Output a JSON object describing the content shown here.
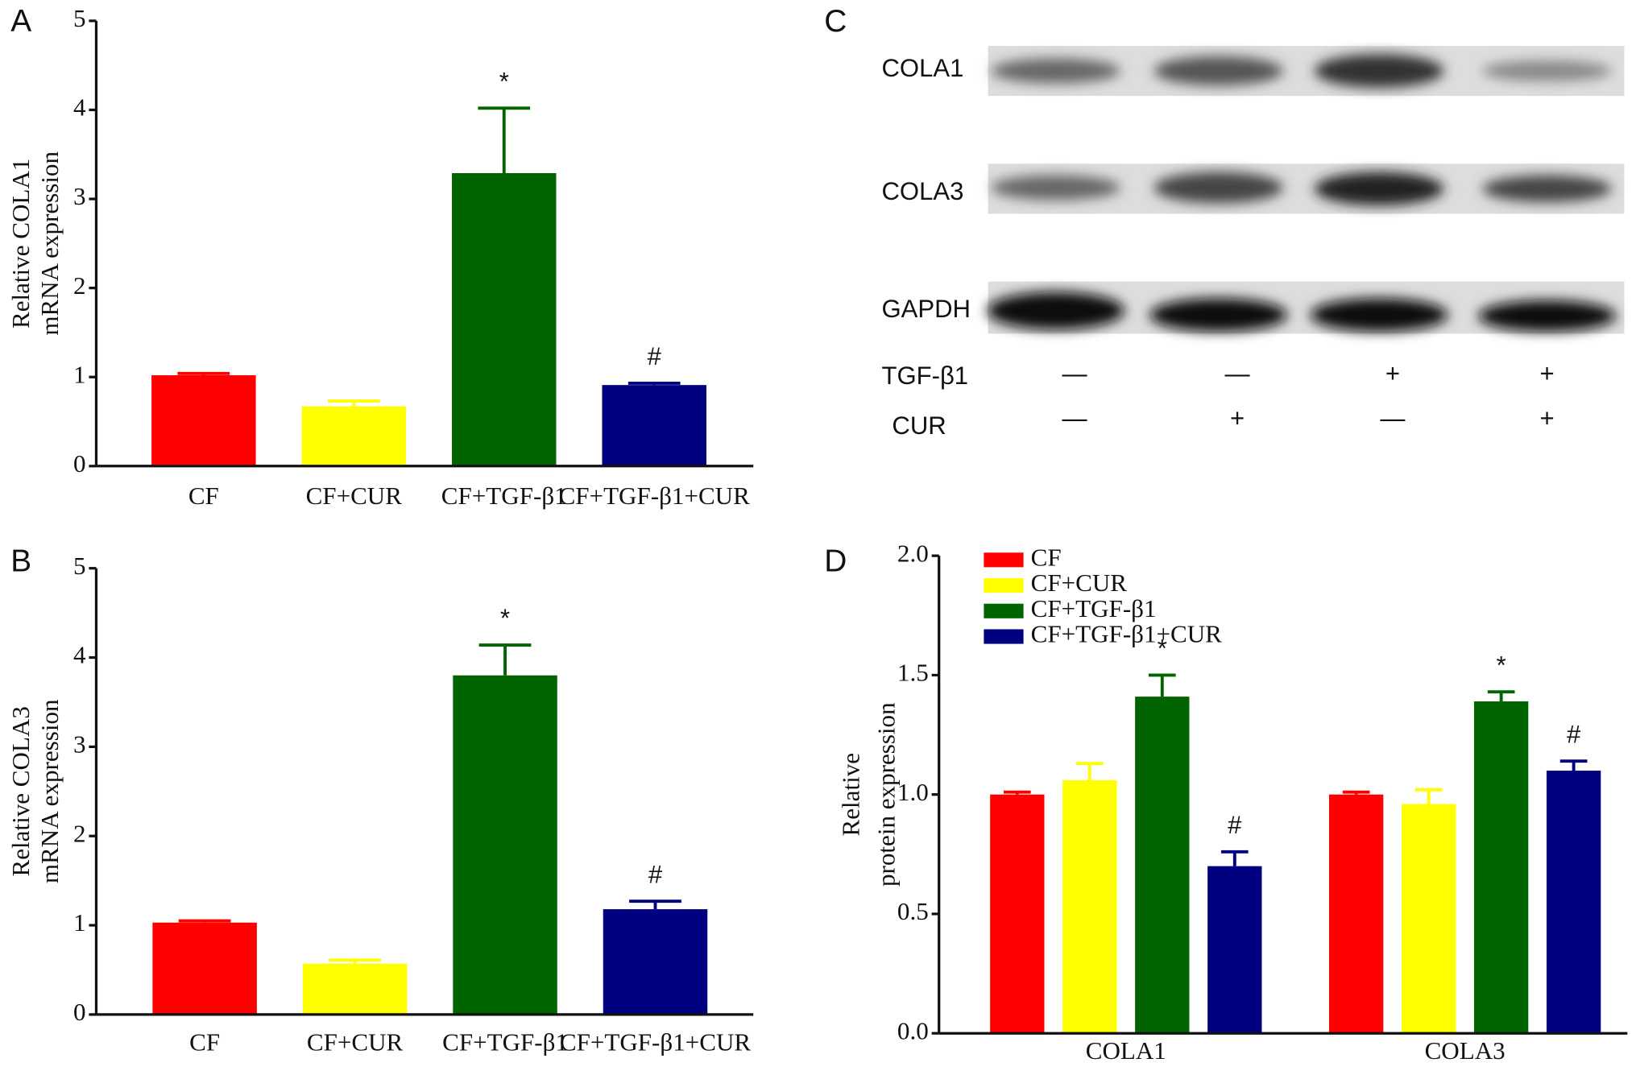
{
  "chart_data": [
    {
      "type": "bar",
      "panel": "A",
      "ylabel": [
        "Relative COLA1",
        "mRNA expression"
      ],
      "categories": [
        "CF",
        "CF+CUR",
        "CF+TGF-β1",
        "CF+TGF-β1+CUR"
      ],
      "values": [
        1.02,
        0.67,
        3.29,
        0.91
      ],
      "errors": [
        0.02,
        0.06,
        0.73,
        0.02
      ],
      "annotations": [
        null,
        null,
        "*",
        "#"
      ],
      "colors": [
        "#ff0000",
        "#ffff00",
        "#006400",
        "#000080"
      ],
      "ylim": [
        0,
        5
      ],
      "yticks": [
        0,
        1,
        2,
        3,
        4,
        5
      ]
    },
    {
      "type": "bar",
      "panel": "B",
      "ylabel": [
        "Relative COLA3",
        "mRNA expression"
      ],
      "categories": [
        "CF",
        "CF+CUR",
        "CF+TGF-β1",
        "CF+TGF-β1+CUR"
      ],
      "values": [
        1.03,
        0.57,
        3.8,
        1.18
      ],
      "errors": [
        0.02,
        0.04,
        0.34,
        0.09
      ],
      "annotations": [
        null,
        null,
        "*",
        "#"
      ],
      "colors": [
        "#ff0000",
        "#ffff00",
        "#006400",
        "#000080"
      ],
      "ylim": [
        0,
        5
      ],
      "yticks": [
        0,
        1,
        2,
        3,
        4,
        5
      ]
    },
    {
      "type": "bar",
      "panel": "D",
      "ylabel": [
        "Relative",
        "protein expression"
      ],
      "categories": [
        "COLA1",
        "COLA3"
      ],
      "series": [
        {
          "name": "CF",
          "color": "#ff0000",
          "values": [
            1.0,
            1.0
          ],
          "errors": [
            0.01,
            0.01
          ],
          "annotations": [
            null,
            null
          ]
        },
        {
          "name": "CF+CUR",
          "color": "#ffff00",
          "values": [
            1.06,
            0.96
          ],
          "errors": [
            0.07,
            0.06
          ],
          "annotations": [
            null,
            null
          ]
        },
        {
          "name": "CF+TGF-β1",
          "color": "#006400",
          "values": [
            1.41,
            1.39
          ],
          "errors": [
            0.09,
            0.04
          ],
          "annotations": [
            "*",
            "*"
          ]
        },
        {
          "name": "CF+TGF-β1+CUR",
          "color": "#000080",
          "values": [
            0.7,
            1.1
          ],
          "errors": [
            0.06,
            0.04
          ],
          "annotations": [
            "#",
            "#"
          ]
        }
      ],
      "ylim": [
        0,
        2
      ],
      "yticks": [
        {
          "value": 0,
          "label": "0.0"
        },
        {
          "value": 0.5,
          "label": "0.5"
        },
        {
          "value": 1,
          "label": "1.0"
        },
        {
          "value": 1.5,
          "label": "1.5"
        },
        {
          "value": 2,
          "label": "2.0"
        }
      ]
    }
  ],
  "blot": {
    "panel": "C",
    "rows": [
      "COLA1",
      "COLA3",
      "GAPDH"
    ],
    "treatments": [
      {
        "name": "TGF-β1",
        "marks": [
          "—",
          "—",
          "+",
          "+"
        ]
      },
      {
        "name": "CUR",
        "marks": [
          "—",
          "+",
          "—",
          "+"
        ]
      }
    ]
  }
}
